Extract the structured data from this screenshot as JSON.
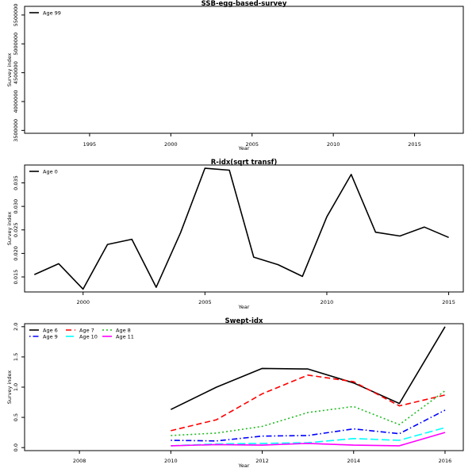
{
  "chart_data": [
    {
      "type": "line",
      "title": "SSB-egg-based-survey",
      "xlabel": "Year",
      "ylabel": "Survey index",
      "xlim": [
        1991,
        2018
      ],
      "ylim": [
        3450000,
        5650000
      ],
      "xticks": [
        "1995",
        "2000",
        "2005",
        "2010",
        "2015"
      ],
      "yticks": [
        "3500000",
        "4000000",
        "4500000",
        "5000000",
        "5500000"
      ],
      "legend_position": "top-left",
      "series": [
        {
          "name": "Age 99",
          "color": "#000000",
          "dash": "solid",
          "x": [],
          "y": []
        }
      ]
    },
    {
      "type": "line",
      "title": "R-idx(sqrt transf)",
      "xlabel": "Year",
      "ylabel": "Survey index",
      "xlim": [
        1997.6,
        2015.6
      ],
      "ylim": [
        0.0118,
        0.0388
      ],
      "xticks": [
        "2000",
        "2005",
        "2010",
        "2015"
      ],
      "yticks": [
        "0.015",
        "0.020",
        "0.025",
        "0.030",
        "0.035"
      ],
      "legend_position": "top-left",
      "series": [
        {
          "name": "Age 0",
          "color": "#000000",
          "dash": "solid",
          "x": [
            1998,
            1999,
            2000,
            2001,
            2002,
            2003,
            2004,
            2005,
            2006,
            2007,
            2008,
            2009,
            2010,
            2011,
            2012,
            2013,
            2014,
            2015
          ],
          "y": [
            0.0155,
            0.0178,
            0.0124,
            0.0219,
            0.023,
            0.0128,
            0.0244,
            0.0381,
            0.0377,
            0.0192,
            0.0176,
            0.0151,
            0.0278,
            0.0368,
            0.0245,
            0.0237,
            0.0256,
            0.0234
          ]
        }
      ]
    },
    {
      "type": "line",
      "title": "Swept-idx",
      "xlabel": "Year",
      "ylabel": "Survey index",
      "xlim": [
        2006.8,
        2016.4
      ],
      "ylim": [
        -0.05,
        2.05
      ],
      "xticks": [
        "2008",
        "2010",
        "2012",
        "2014",
        "2016"
      ],
      "yticks": [
        "0.0",
        "0.5",
        "1.0",
        "1.5",
        "2.0"
      ],
      "legend_position": "top-left",
      "series": [
        {
          "name": "Age 6",
          "color": "#000000",
          "dash": "solid",
          "x": [
            2010,
            2011,
            2012,
            2013,
            2014,
            2015,
            2016
          ],
          "y": [
            0.63,
            1.0,
            1.31,
            1.3,
            1.07,
            0.73,
            2.0
          ]
        },
        {
          "name": "Age 7",
          "color": "#ff0000",
          "dash": "dashed",
          "x": [
            2010,
            2011,
            2012,
            2013,
            2014,
            2015,
            2016
          ],
          "y": [
            0.28,
            0.46,
            0.89,
            1.2,
            1.09,
            0.69,
            0.87
          ]
        },
        {
          "name": "Age 8",
          "color": "#22bb22",
          "dash": "dotted",
          "x": [
            2010,
            2011,
            2012,
            2013,
            2014,
            2015,
            2016
          ],
          "y": [
            0.2,
            0.24,
            0.35,
            0.58,
            0.68,
            0.38,
            0.94
          ]
        },
        {
          "name": "Age 9",
          "color": "#0000ff",
          "dash": "dotdash",
          "x": [
            2010,
            2011,
            2012,
            2013,
            2014,
            2015,
            2016
          ],
          "y": [
            0.12,
            0.11,
            0.19,
            0.2,
            0.31,
            0.23,
            0.62
          ]
        },
        {
          "name": "Age 10",
          "color": "#00ffff",
          "dash": "longdash",
          "x": [
            2010,
            2011,
            2012,
            2013,
            2014,
            2015,
            2016
          ],
          "y": [
            0.03,
            0.06,
            0.07,
            0.08,
            0.15,
            0.12,
            0.33
          ]
        },
        {
          "name": "Age 11",
          "color": "#ff00ff",
          "dash": "solid",
          "x": [
            2010,
            2011,
            2012,
            2013,
            2014,
            2015,
            2016
          ],
          "y": [
            0.03,
            0.05,
            0.04,
            0.07,
            0.04,
            0.03,
            0.25
          ]
        }
      ]
    }
  ]
}
